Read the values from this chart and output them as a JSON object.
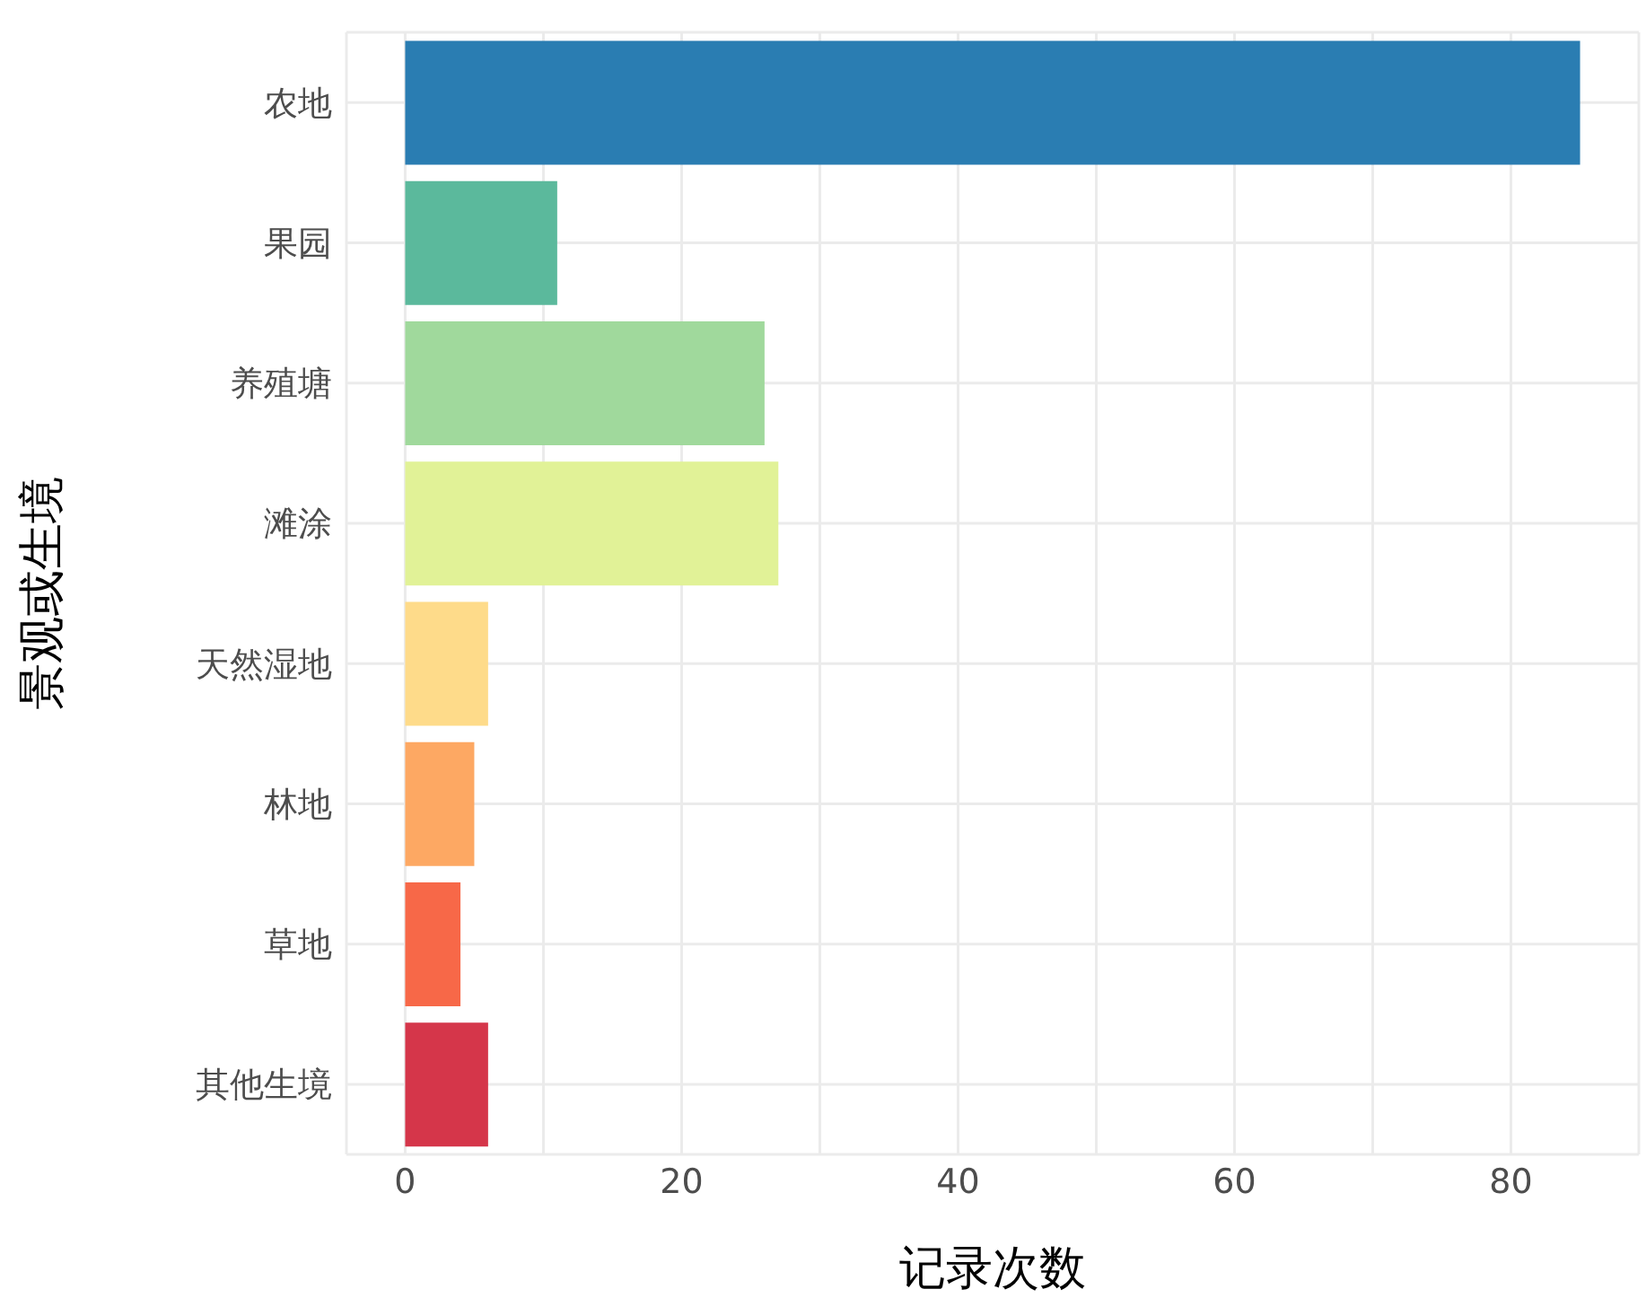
{
  "chart_data": {
    "type": "bar",
    "orientation": "horizontal",
    "xlabel": "记录次数",
    "ylabel": "景观或生境",
    "categories": [
      "农地",
      "果园",
      "养殖塘",
      "滩涂",
      "天然湿地",
      "林地",
      "草地",
      "其他生境"
    ],
    "values": [
      85,
      11,
      26,
      27,
      6,
      5,
      4,
      6
    ],
    "colors": [
      "#2a7db2",
      "#5bb99c",
      "#a0d99c",
      "#e1f297",
      "#fedb8a",
      "#fda863",
      "#f76848",
      "#d5364a"
    ],
    "xlim": [
      -4.25,
      89.25
    ],
    "xticks": [
      0,
      {
        "value": 10,
        "label": null
      },
      20,
      {
        "value": 30,
        "label": null
      },
      40,
      {
        "value": 50,
        "label": null
      },
      60,
      {
        "value": 70,
        "label": null
      },
      80
    ],
    "grid": true,
    "legend": false
  }
}
